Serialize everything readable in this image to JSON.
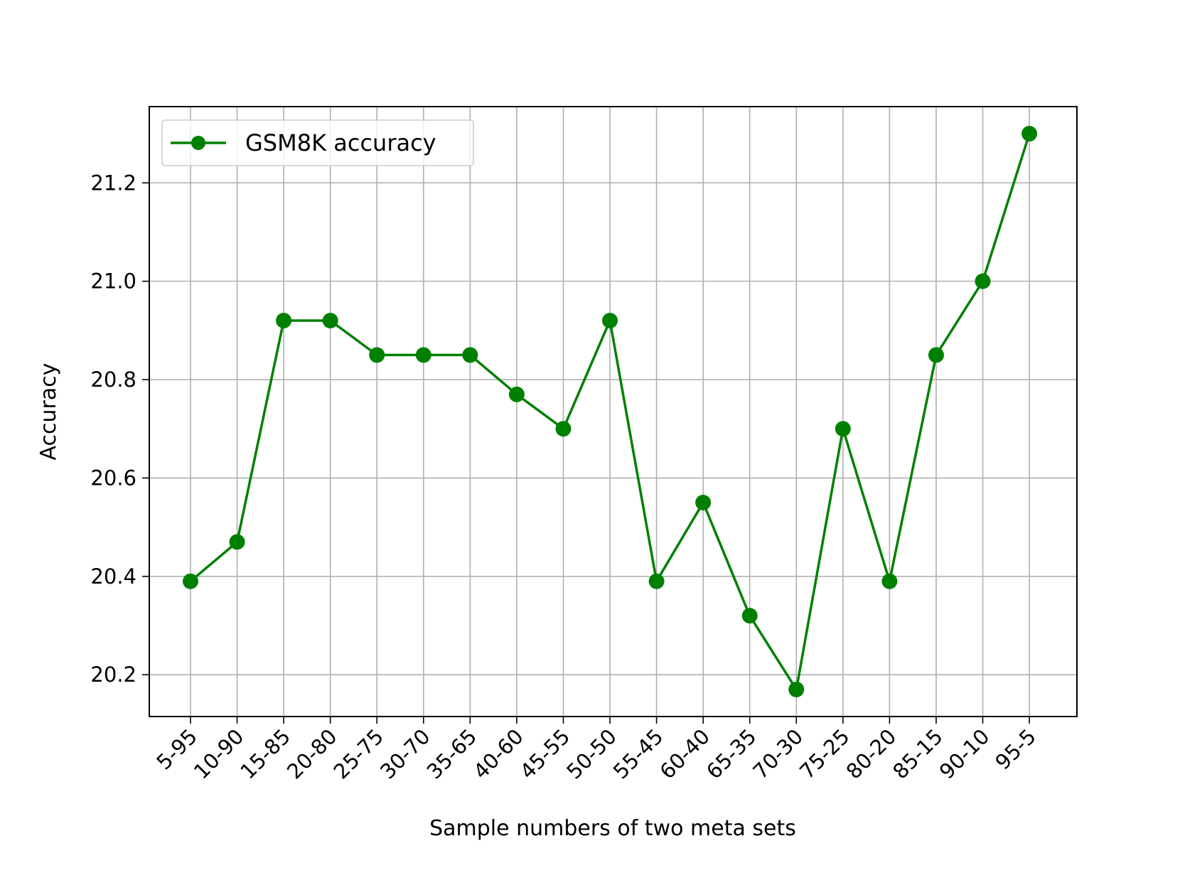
{
  "chart_data": {
    "type": "line",
    "categories": [
      "5-95",
      "10-90",
      "15-85",
      "20-80",
      "25-75",
      "30-70",
      "35-65",
      "40-60",
      "45-55",
      "50-50",
      "55-45",
      "60-40",
      "65-35",
      "70-30",
      "75-25",
      "80-20",
      "85-15",
      "90-10",
      "95-5"
    ],
    "series": [
      {
        "name": "GSM8K accuracy",
        "values": [
          20.39,
          20.47,
          20.92,
          20.92,
          20.85,
          20.85,
          20.85,
          20.77,
          20.7,
          20.92,
          20.39,
          20.55,
          20.32,
          20.17,
          20.7,
          20.39,
          20.85,
          21.0,
          21.3
        ],
        "color": "#008000",
        "marker": "circle"
      }
    ],
    "xlabel": "Sample numbers of two meta sets",
    "ylabel": "Accuracy",
    "ylim": [
      20.115,
      21.355
    ],
    "yticks": [
      "20.2",
      "20.4",
      "20.6",
      "20.8",
      "21.0",
      "21.2"
    ],
    "grid": true,
    "legend_position": "top-left",
    "title": ""
  }
}
